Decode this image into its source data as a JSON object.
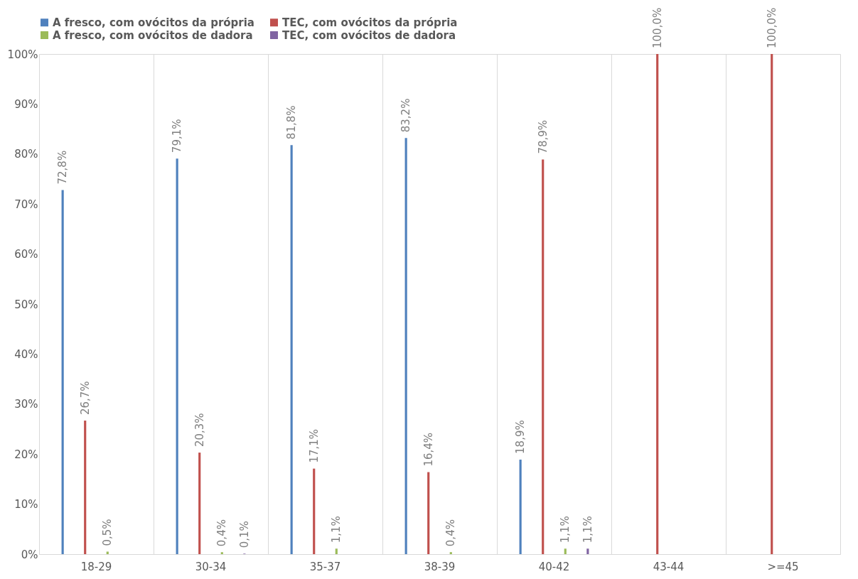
{
  "chart_data": {
    "type": "bar",
    "categories": [
      "18-29",
      "30-34",
      "35-37",
      "38-39",
      "40-42",
      "43-44",
      ">=45"
    ],
    "series": [
      {
        "name": "A fresco, com ovócitos da própria",
        "color": "#4f81bd",
        "values": [
          72.8,
          79.1,
          81.8,
          83.2,
          18.9,
          null,
          null
        ],
        "value_labels": [
          "72,8%",
          "79,1%",
          "81,8%",
          "83,2%",
          "18,9%",
          null,
          null
        ]
      },
      {
        "name": "TEC, com ovócitos da própria",
        "color": "#c0504d",
        "values": [
          26.7,
          20.3,
          17.1,
          16.4,
          78.9,
          100,
          100
        ],
        "value_labels": [
          "26,7%",
          "20,3%",
          "17,1%",
          "16,4%",
          "78,9%",
          "100,0%",
          "100,0%"
        ]
      },
      {
        "name": "A fresco, com ovócitos de dadora",
        "color": "#9bbb59",
        "values": [
          0.5,
          0.4,
          1.1,
          0.4,
          1.1,
          null,
          null
        ],
        "value_labels": [
          "0,5%",
          "0,4%",
          "1,1%",
          "0,4%",
          "1,1%",
          null,
          null
        ]
      },
      {
        "name": "TEC, com ovócitos de dadora",
        "color": "#8064a2",
        "values": [
          null,
          0.1,
          null,
          null,
          1.1,
          null,
          null
        ],
        "value_labels": [
          null,
          "0,1%",
          null,
          null,
          "1,1%",
          null,
          null
        ]
      }
    ],
    "ylim": [
      0,
      100
    ],
    "yticks": [
      {
        "value": 0,
        "label": "0%"
      },
      {
        "value": 10,
        "label": "10%"
      },
      {
        "value": 20,
        "label": "20%"
      },
      {
        "value": 30,
        "label": "30%"
      },
      {
        "value": 40,
        "label": "40%"
      },
      {
        "value": 50,
        "label": "50%"
      },
      {
        "value": 60,
        "label": "60%"
      },
      {
        "value": 70,
        "label": "70%"
      },
      {
        "value": 80,
        "label": "80%"
      },
      {
        "value": 90,
        "label": "90%"
      },
      {
        "value": 100,
        "label": "100%"
      }
    ],
    "grid": "x",
    "legend": "top"
  }
}
